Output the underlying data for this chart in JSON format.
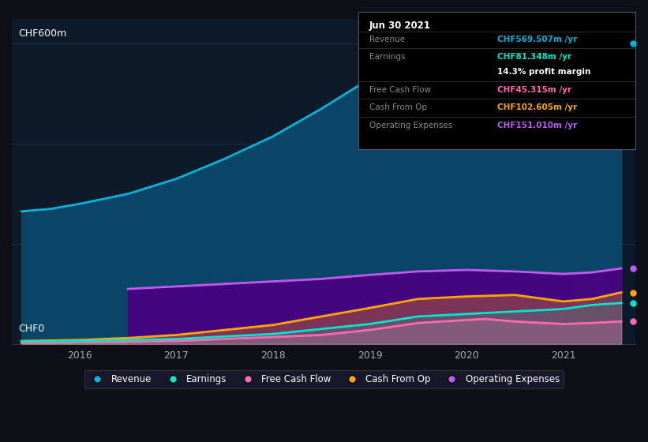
{
  "bg_color": "#0d1117",
  "plot_bg_color": "#0d1a2a",
  "title_label": "CHF600m",
  "zero_label": "CHF0",
  "ylim": [
    0,
    650
  ],
  "xlim": [
    2015.3,
    2021.75
  ],
  "grid_color": "#1e3050",
  "grid_levels": [
    0,
    200,
    400,
    600
  ],
  "revenue": {
    "x": [
      2015.4,
      2015.7,
      2016.0,
      2016.5,
      2017.0,
      2017.5,
      2018.0,
      2018.5,
      2019.0,
      2019.3,
      2019.6,
      2020.0,
      2020.3,
      2020.6,
      2021.0,
      2021.3,
      2021.6
    ],
    "y": [
      265,
      270,
      280,
      300,
      330,
      370,
      415,
      470,
      530,
      570,
      575,
      555,
      530,
      515,
      510,
      555,
      600
    ],
    "color": "#00b4d8",
    "fill_color": "#0a4a6e",
    "label": "Revenue"
  },
  "earnings": {
    "x": [
      2015.4,
      2015.7,
      2016.0,
      2016.5,
      2017.0,
      2017.5,
      2018.0,
      2018.5,
      2019.0,
      2019.5,
      2020.0,
      2020.5,
      2021.0,
      2021.3,
      2021.6
    ],
    "y": [
      5,
      5,
      6,
      8,
      10,
      15,
      20,
      30,
      40,
      55,
      60,
      65,
      70,
      78,
      82
    ],
    "color": "#00e5cc",
    "fill_color": "#00e5cc",
    "label": "Earnings"
  },
  "free_cash_flow": {
    "x": [
      2015.4,
      2015.7,
      2016.0,
      2016.5,
      2017.0,
      2017.5,
      2018.0,
      2018.5,
      2019.0,
      2019.5,
      2020.0,
      2020.2,
      2020.5,
      2021.0,
      2021.3,
      2021.6
    ],
    "y": [
      2,
      2,
      3,
      4,
      6,
      10,
      14,
      18,
      28,
      42,
      48,
      50,
      45,
      40,
      42,
      45
    ],
    "color": "#ff69b4",
    "fill_color": "#ff69b4",
    "label": "Free Cash Flow"
  },
  "cash_from_op": {
    "x": [
      2015.4,
      2015.7,
      2016.0,
      2016.5,
      2017.0,
      2017.5,
      2018.0,
      2018.5,
      2019.0,
      2019.5,
      2020.0,
      2020.5,
      2021.0,
      2021.3,
      2021.6
    ],
    "y": [
      6,
      7,
      8,
      12,
      18,
      28,
      38,
      55,
      72,
      90,
      95,
      98,
      85,
      90,
      103
    ],
    "color": "#ffa500",
    "fill_color": "#ffa500",
    "label": "Cash From Op"
  },
  "op_expenses": {
    "x": [
      2016.5,
      2016.7,
      2017.0,
      2017.5,
      2018.0,
      2018.5,
      2019.0,
      2019.5,
      2020.0,
      2020.5,
      2021.0,
      2021.3,
      2021.6
    ],
    "y": [
      110,
      112,
      115,
      120,
      125,
      130,
      138,
      145,
      148,
      145,
      140,
      143,
      151
    ],
    "color": "#bf5af2",
    "fill_color": "#4b0082",
    "label": "Operating Expenses"
  },
  "tooltip": {
    "date": "Jun 30 2021"
  },
  "highlight_x": 2021.25,
  "legend": [
    {
      "label": "Revenue",
      "color": "#00b4d8"
    },
    {
      "label": "Earnings",
      "color": "#00e5cc"
    },
    {
      "label": "Free Cash Flow",
      "color": "#ff69b4"
    },
    {
      "label": "Cash From Op",
      "color": "#ffa500"
    },
    {
      "label": "Operating Expenses",
      "color": "#bf5af2"
    }
  ]
}
